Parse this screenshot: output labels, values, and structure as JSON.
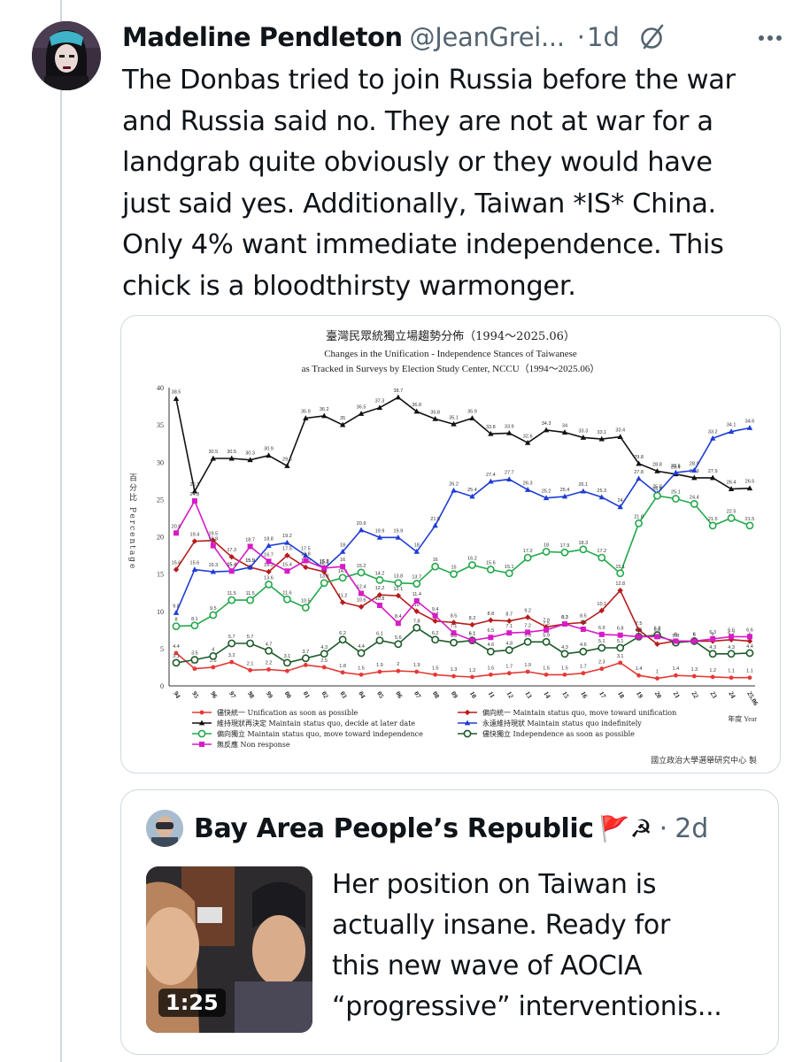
{
  "post": {
    "author_name": "Madeline Pendleton",
    "author_handle": "@JeanGrei...",
    "separator": "·",
    "time_ago": "1d",
    "text": "The Donbas tried to join Russia before the war\nand Russia said no. They are not at war for a\nlandgrab quite obviously or they would have\njust said yes. Additionally, Taiwan *IS* China.\nOnly 4% want immediate independence. This\nchick is a bloodthirsty warmonger.",
    "icons": {
      "grok": "slashed-circle-icon",
      "more": "more-dots-icon"
    }
  },
  "quote": {
    "author_name": "Bay Area People’s Republic",
    "author_emoji": "🚩☭",
    "separator": "·",
    "time_ago": "2d",
    "video_duration": "1:25",
    "text": "Her position on Taiwan is\nactually insane. Ready for\nthis new wave of AOCIA\n“progressive” interventionis..."
  },
  "chart_data": {
    "type": "line",
    "title": "臺灣民眾統獨立場趨勢分佈（1994～2025.06）",
    "subtitle_1": "Changes in the Unification - Independence Stances of Taiwanese",
    "subtitle_2": "as Tracked in Surveys by Election Study Center, NCCU（1994～2025.06）",
    "ylabel": "百分比 Percentage",
    "xlabel": "年度 Year",
    "source": "國立政治大學選舉研究中心 製",
    "ylim": [
      0,
      40
    ],
    "y_ticks": [
      "0",
      "5",
      "10",
      "15",
      "20",
      "25",
      "30",
      "35",
      "40"
    ],
    "x": [
      "94",
      "95",
      "96",
      "97",
      "98",
      "99",
      "00",
      "01",
      "02",
      "03",
      "04",
      "05",
      "06",
      "07",
      "08",
      "09",
      "10",
      "11",
      "12",
      "13",
      "14",
      "15",
      "16",
      "17",
      "18",
      "19",
      "20",
      "21",
      "22",
      "23",
      "24",
      "25.06"
    ],
    "series": [
      {
        "name": "儘快統一 Unification as soon as possible",
        "color": "#e53935",
        "marker": "circle-filled",
        "values": [
          4.4,
          2.3,
          2.5,
          3.2,
          2.1,
          2.2,
          2.0,
          2.8,
          2.5,
          1.8,
          1.5,
          1.9,
          2.0,
          1.9,
          1.5,
          1.3,
          1.2,
          1.5,
          1.7,
          1.9,
          1.5,
          1.5,
          1.7,
          2.3,
          3.1,
          1.4,
          1.0,
          1.4,
          1.3,
          1.2,
          1.1,
          1.1
        ]
      },
      {
        "name": "偏向統一 Maintain status quo, move toward unification",
        "color": "#b71c1c",
        "marker": "diamond-filled",
        "values": [
          15.6,
          19.4,
          19.5,
          17.3,
          15.9,
          15.3,
          17.5,
          15.9,
          15.3,
          11.2,
          10.6,
          12.2,
          12.1,
          10.0,
          8.7,
          8.5,
          8.2,
          8.8,
          8.7,
          9.2,
          7.9,
          8.3,
          8.5,
          10.1,
          12.8,
          7.5,
          5.6,
          6.0,
          6.0,
          6.0,
          6.2,
          6.0
        ]
      },
      {
        "name": "維持現狀再決定 Maintain status quo, decide at later date",
        "color": "#111111",
        "marker": "triangle-filled",
        "values": [
          38.5,
          26.1,
          30.5,
          30.5,
          30.3,
          30.9,
          29.5,
          35.9,
          36.2,
          35.0,
          36.5,
          37.3,
          38.7,
          36.8,
          35.8,
          35.1,
          35.9,
          33.8,
          33.9,
          32.6,
          34.3,
          34.0,
          33.3,
          33.1,
          33.4,
          29.8,
          28.8,
          28.4,
          27.9,
          27.9,
          26.4,
          26.5
        ]
      },
      {
        "name": "永遠維持現狀 Maintain status quo indefinitely",
        "color": "#1e3cd6",
        "marker": "triangle-filled",
        "values": [
          9.8,
          15.6,
          15.3,
          15.4,
          15.9,
          18.8,
          19.2,
          17.5,
          15.7,
          18.0,
          20.9,
          19.9,
          19.9,
          18.0,
          21.5,
          26.2,
          25.4,
          27.4,
          27.7,
          26.3,
          25.2,
          25.4,
          26.1,
          25.3,
          24.0,
          27.8,
          25.8,
          28.6,
          28.9,
          33.2,
          34.1,
          34.6
        ]
      },
      {
        "name": "偏向獨立 Maintain status quo, move toward independence",
        "color": "#22a84a",
        "marker": "circle-open",
        "values": [
          8.0,
          8.1,
          9.5,
          11.5,
          11.5,
          13.6,
          11.6,
          10.5,
          13.8,
          14.5,
          15.2,
          14.2,
          13.8,
          13.7,
          16.0,
          15.0,
          16.2,
          15.6,
          15.1,
          17.2,
          18.0,
          17.9,
          18.3,
          17.2,
          15.1,
          21.8,
          25.5,
          25.1,
          24.4,
          21.5,
          22.5,
          21.5
        ]
      },
      {
        "name": "儘快獨立 Independence as soon as possible",
        "color": "#1d5a2a",
        "marker": "circle-open",
        "values": [
          3.1,
          3.5,
          4.0,
          5.7,
          5.7,
          4.7,
          3.1,
          3.7,
          4.3,
          6.2,
          4.4,
          6.1,
          5.6,
          7.8,
          6.2,
          5.8,
          6.1,
          4.6,
          4.8,
          5.9,
          5.9,
          4.3,
          4.6,
          5.1,
          5.1,
          6.6,
          6.8,
          5.8,
          6.0,
          4.3,
          4.3,
          4.4
        ]
      },
      {
        "name": "無反應 Non response",
        "color": "#d61cc6",
        "marker": "square-filled",
        "values": [
          20.5,
          24.8,
          18.8,
          15.4,
          18.7,
          16.7,
          15.4,
          16.8,
          15.8,
          16.0,
          12.4,
          10.8,
          8.4,
          11.4,
          9.4,
          7.1,
          6.1,
          6.5,
          7.1,
          7.2,
          7.5,
          8.3,
          7.6,
          6.9,
          6.8,
          6.6,
          6.6,
          6.0,
          6.0,
          6.3,
          6.6,
          6.6
        ]
      }
    ]
  }
}
